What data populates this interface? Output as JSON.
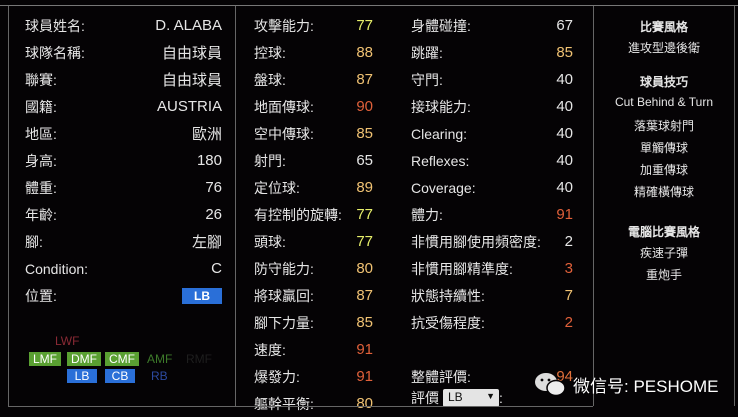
{
  "colors": {
    "yellow": "#e6ee6a",
    "orange": "#f0c273",
    "red": "#e0603a",
    "white": "#e6e6e6"
  },
  "info": [
    {
      "label": "球員姓名:",
      "value": "D. ALABA"
    },
    {
      "label": "球隊名稱:",
      "value": "自由球員"
    },
    {
      "label": "聯賽:",
      "value": "自由球員"
    },
    {
      "label": "國籍:",
      "value": "AUSTRIA"
    },
    {
      "label": "地區:",
      "value": "歐洲"
    },
    {
      "label": "身高:",
      "value": "180"
    },
    {
      "label": "體重:",
      "value": "76"
    },
    {
      "label": "年齡:",
      "value": "26"
    },
    {
      "label": "腳:",
      "value": "左腳"
    },
    {
      "label": "Condition:",
      "value": "C"
    },
    {
      "label": "位置:",
      "value": "LB"
    }
  ],
  "positions": {
    "lwf": "LWF",
    "lmf": "LMF",
    "dmf": "DMF",
    "cmf": "CMF",
    "amf": "AMF",
    "rmf": "RMF",
    "lb": "LB",
    "cb": "CB",
    "rb": "RB"
  },
  "stats1": [
    {
      "label": "攻擊能力:",
      "value": "77",
      "color": "yellow"
    },
    {
      "label": "控球:",
      "value": "88",
      "color": "orange"
    },
    {
      "label": "盤球:",
      "value": "87",
      "color": "orange"
    },
    {
      "label": "地面傳球:",
      "value": "90",
      "color": "red"
    },
    {
      "label": "空中傳球:",
      "value": "85",
      "color": "orange"
    },
    {
      "label": "射門:",
      "value": "65",
      "color": "white"
    },
    {
      "label": "定位球:",
      "value": "89",
      "color": "orange"
    },
    {
      "label": "有控制的旋轉:",
      "value": "77",
      "color": "yellow"
    },
    {
      "label": "頭球:",
      "value": "77",
      "color": "yellow"
    },
    {
      "label": "防守能力:",
      "value": "80",
      "color": "orange"
    },
    {
      "label": "將球贏回:",
      "value": "87",
      "color": "orange"
    },
    {
      "label": "腳下力量:",
      "value": "85",
      "color": "orange"
    },
    {
      "label": "速度:",
      "value": "91",
      "color": "red"
    },
    {
      "label": "爆發力:",
      "value": "91",
      "color": "red"
    },
    {
      "label": "軀幹平衡:",
      "value": "80",
      "color": "orange"
    }
  ],
  "stats2": [
    {
      "label": "身體碰撞:",
      "value": "67",
      "color": "white"
    },
    {
      "label": "跳躍:",
      "value": "85",
      "color": "orange"
    },
    {
      "label": "守門:",
      "value": "40",
      "color": "white"
    },
    {
      "label": "接球能力:",
      "value": "40",
      "color": "white"
    },
    {
      "label": "Clearing:",
      "value": "40",
      "color": "white"
    },
    {
      "label": "Reflexes:",
      "value": "40",
      "color": "white"
    },
    {
      "label": "Coverage:",
      "value": "40",
      "color": "white"
    },
    {
      "label": "體力:",
      "value": "91",
      "color": "red"
    },
    {
      "label": "非慣用腳使用頻密度:",
      "value": "2",
      "color": "white"
    },
    {
      "label": "非慣用腳精準度:",
      "value": "3",
      "color": "red"
    },
    {
      "label": "狀態持續性:",
      "value": "7",
      "color": "orange"
    },
    {
      "label": "抗受傷程度:",
      "value": "2",
      "color": "red"
    }
  ],
  "overall": {
    "label": "整體評價:",
    "value": "94"
  },
  "rating": {
    "label": "評價",
    "selected": "LB",
    "suffix": ":"
  },
  "side": {
    "style_title": "比賽風格",
    "style": "進攻型邊後衛",
    "skills_title": "球員技巧",
    "skills": [
      "Cut Behind & Turn",
      "落葉球射門",
      "單觸傳球",
      "加重傳球",
      "精確橫傳球"
    ],
    "ai_title": "電腦比賽風格",
    "ai": [
      "疾速子彈",
      "重炮手"
    ]
  },
  "watermark": "微信号: PESHOME"
}
